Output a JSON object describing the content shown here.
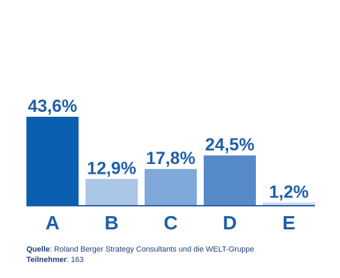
{
  "chart_data": {
    "type": "bar",
    "categories": [
      "A",
      "B",
      "C",
      "D",
      "E"
    ],
    "values": [
      43.6,
      12.9,
      17.8,
      24.5,
      1.2
    ],
    "value_labels": [
      "43,6%",
      "12,9%",
      "17,8%",
      "24,5%",
      "1,2%"
    ],
    "unit": "%",
    "title": "",
    "xlabel": "",
    "ylabel": "",
    "ylim": [
      0,
      43.6
    ],
    "grid": false,
    "colors": [
      "#0a5fb0",
      "#a9c6e6",
      "#7ea9d9",
      "#5689c8",
      "#c9daef"
    ],
    "axis_color": "#2a5fa8"
  },
  "footer": {
    "source_key": "Quelle",
    "source_text": ": Roland Berger Strategy Consultants und die WELT-Gruppe",
    "participants_key": "Teilnehmer",
    "participants_text": ": 163"
  }
}
